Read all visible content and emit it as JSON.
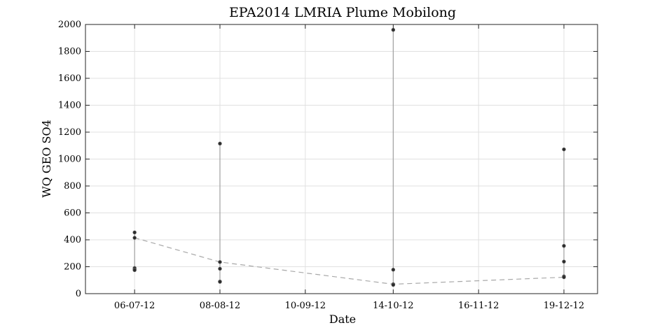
{
  "chart_data": {
    "type": "line",
    "title": "EPA2014 LMRIA Plume Mobilong",
    "xlabel": "Date",
    "ylabel": "WQ GEO SO4",
    "xlim": [
      "2012-06-17",
      "2013-01-01"
    ],
    "ylim": [
      0,
      2000
    ],
    "grid": true,
    "x_ticks": [
      "06-07-12",
      "08-08-12",
      "10-09-12",
      "14-10-12",
      "16-11-12",
      "19-12-12"
    ],
    "x_tick_dates": [
      "2012-07-06",
      "2012-08-08",
      "2012-09-10",
      "2012-10-14",
      "2012-11-16",
      "2012-12-19"
    ],
    "y_ticks": [
      0,
      200,
      400,
      600,
      800,
      1000,
      1200,
      1400,
      1600,
      1800,
      2000
    ],
    "sampling_events": [
      {
        "date": "2012-07-06",
        "values": [
          455,
          415,
          190,
          180,
          175
        ]
      },
      {
        "date": "2012-08-08",
        "values": [
          1115,
          235,
          185,
          90,
          88
        ]
      },
      {
        "date": "2012-10-14",
        "values": [
          1960,
          178,
          70,
          65
        ]
      },
      {
        "date": "2012-12-19",
        "values": [
          1072,
          355,
          238,
          128,
          122
        ]
      }
    ],
    "trend_line": {
      "dates": [
        "2012-07-06",
        "2012-08-08",
        "2012-10-14",
        "2012-12-19"
      ],
      "values": [
        415,
        235,
        70,
        122
      ]
    }
  }
}
